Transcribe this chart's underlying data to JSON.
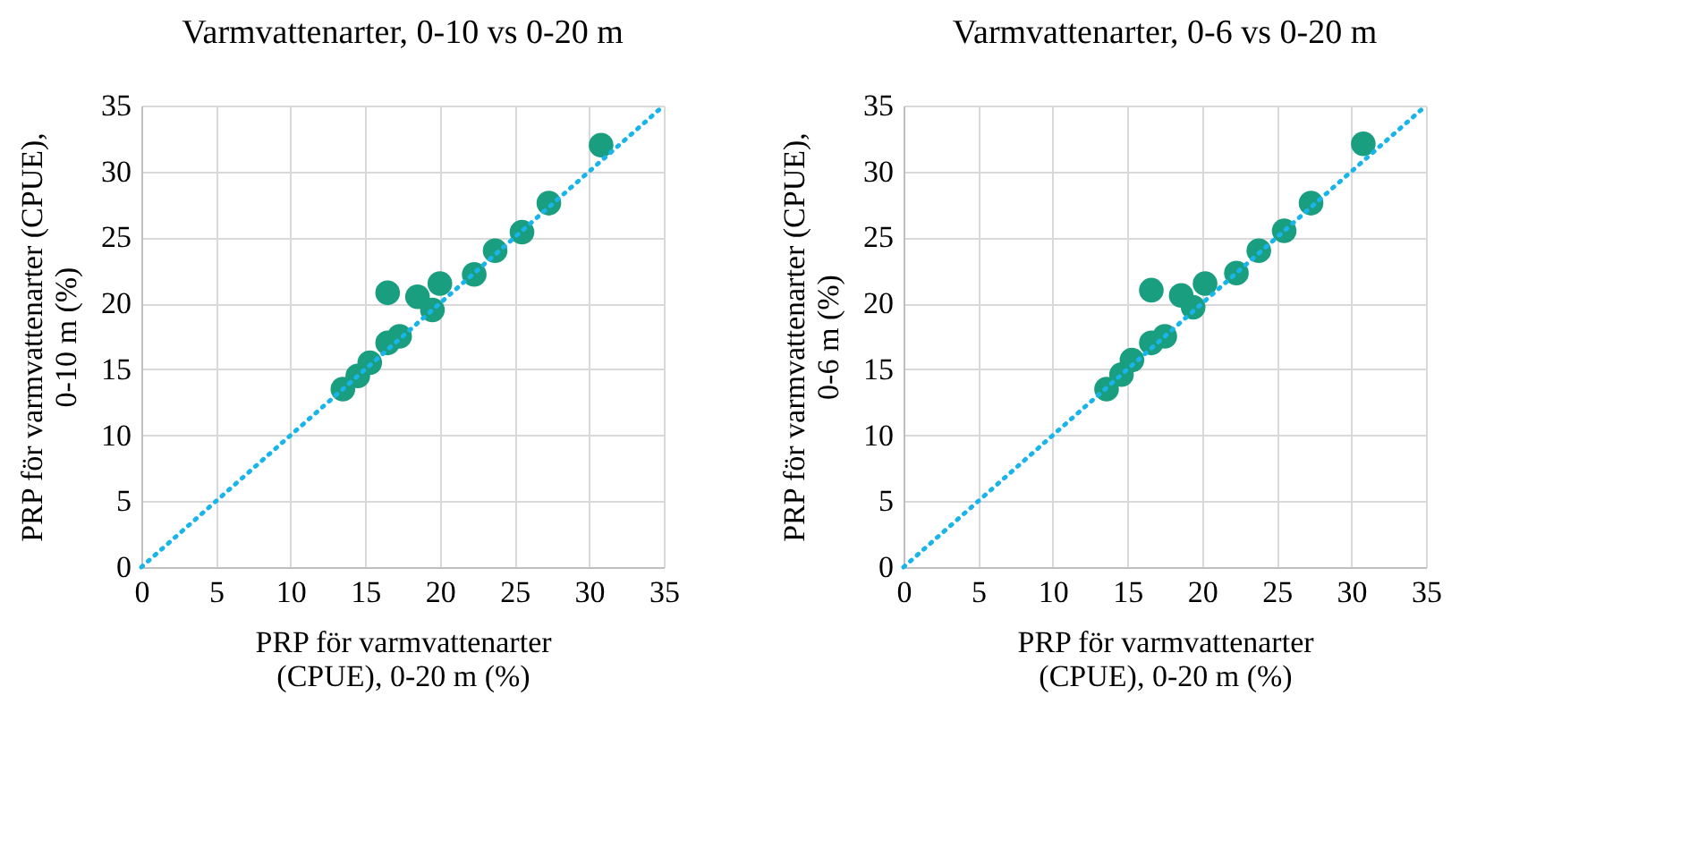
{
  "chart_data": [
    {
      "type": "scatter",
      "title": "Varmvattenarter, 0-10 vs 0-20 m",
      "xlabel": "PRP för varmvattenarter (CPUE), 0-20 m (%)",
      "ylabel": "PRP för varmvattenarter (CPUE), 0-10 m (%)",
      "xlim": [
        0,
        35
      ],
      "ylim": [
        0,
        35
      ],
      "xticks": [
        0,
        5,
        10,
        15,
        20,
        25,
        30,
        35
      ],
      "yticks": [
        0,
        5,
        10,
        15,
        20,
        25,
        30,
        35
      ],
      "grid": true,
      "series": [
        {
          "type": "scatter",
          "marker": "circle",
          "color": "#1a9e80",
          "x": [
            13.5,
            14.5,
            15.3,
            16.5,
            17.3,
            16.5,
            18.5,
            19.5,
            20,
            22.3,
            23.7,
            25.5,
            27.3,
            30.8
          ],
          "values": [
            13.5,
            14.5,
            15.5,
            17,
            17.5,
            20.8,
            20.5,
            19.5,
            21.5,
            22.2,
            24,
            25.4,
            27.6,
            32
          ]
        },
        {
          "type": "line",
          "marker": "none",
          "line_style": "dotted",
          "color": "#19b4ea",
          "x": [
            0,
            35
          ],
          "values": [
            0,
            35
          ]
        }
      ]
    },
    {
      "type": "scatter",
      "title": "Varmvattenarter, 0-6 vs 0-20 m",
      "xlabel": "PRP för varmvattenarter (CPUE), 0-20 m (%)",
      "ylabel": "PRP för varmvattenarter (CPUE), 0-6 m (%)",
      "xlim": [
        0,
        35
      ],
      "ylim": [
        0,
        35
      ],
      "xticks": [
        0,
        5,
        10,
        15,
        20,
        25,
        30,
        35
      ],
      "yticks": [
        0,
        5,
        10,
        15,
        20,
        25,
        30,
        35
      ],
      "grid": true,
      "series": [
        {
          "type": "scatter",
          "marker": "circle",
          "color": "#1a9e80",
          "x": [
            13.6,
            14.6,
            15.3,
            16.6,
            17.5,
            16.6,
            18.6,
            19.4,
            20.2,
            22.3,
            23.8,
            25.5,
            27.3,
            30.8
          ],
          "values": [
            13.5,
            14.6,
            15.7,
            17,
            17.5,
            21,
            20.6,
            19.7,
            21.5,
            22.3,
            24,
            25.5,
            27.6,
            32.1
          ]
        },
        {
          "type": "line",
          "marker": "none",
          "line_style": "dotted",
          "color": "#19b4ea",
          "x": [
            0,
            35
          ],
          "values": [
            0,
            35
          ]
        }
      ]
    }
  ]
}
